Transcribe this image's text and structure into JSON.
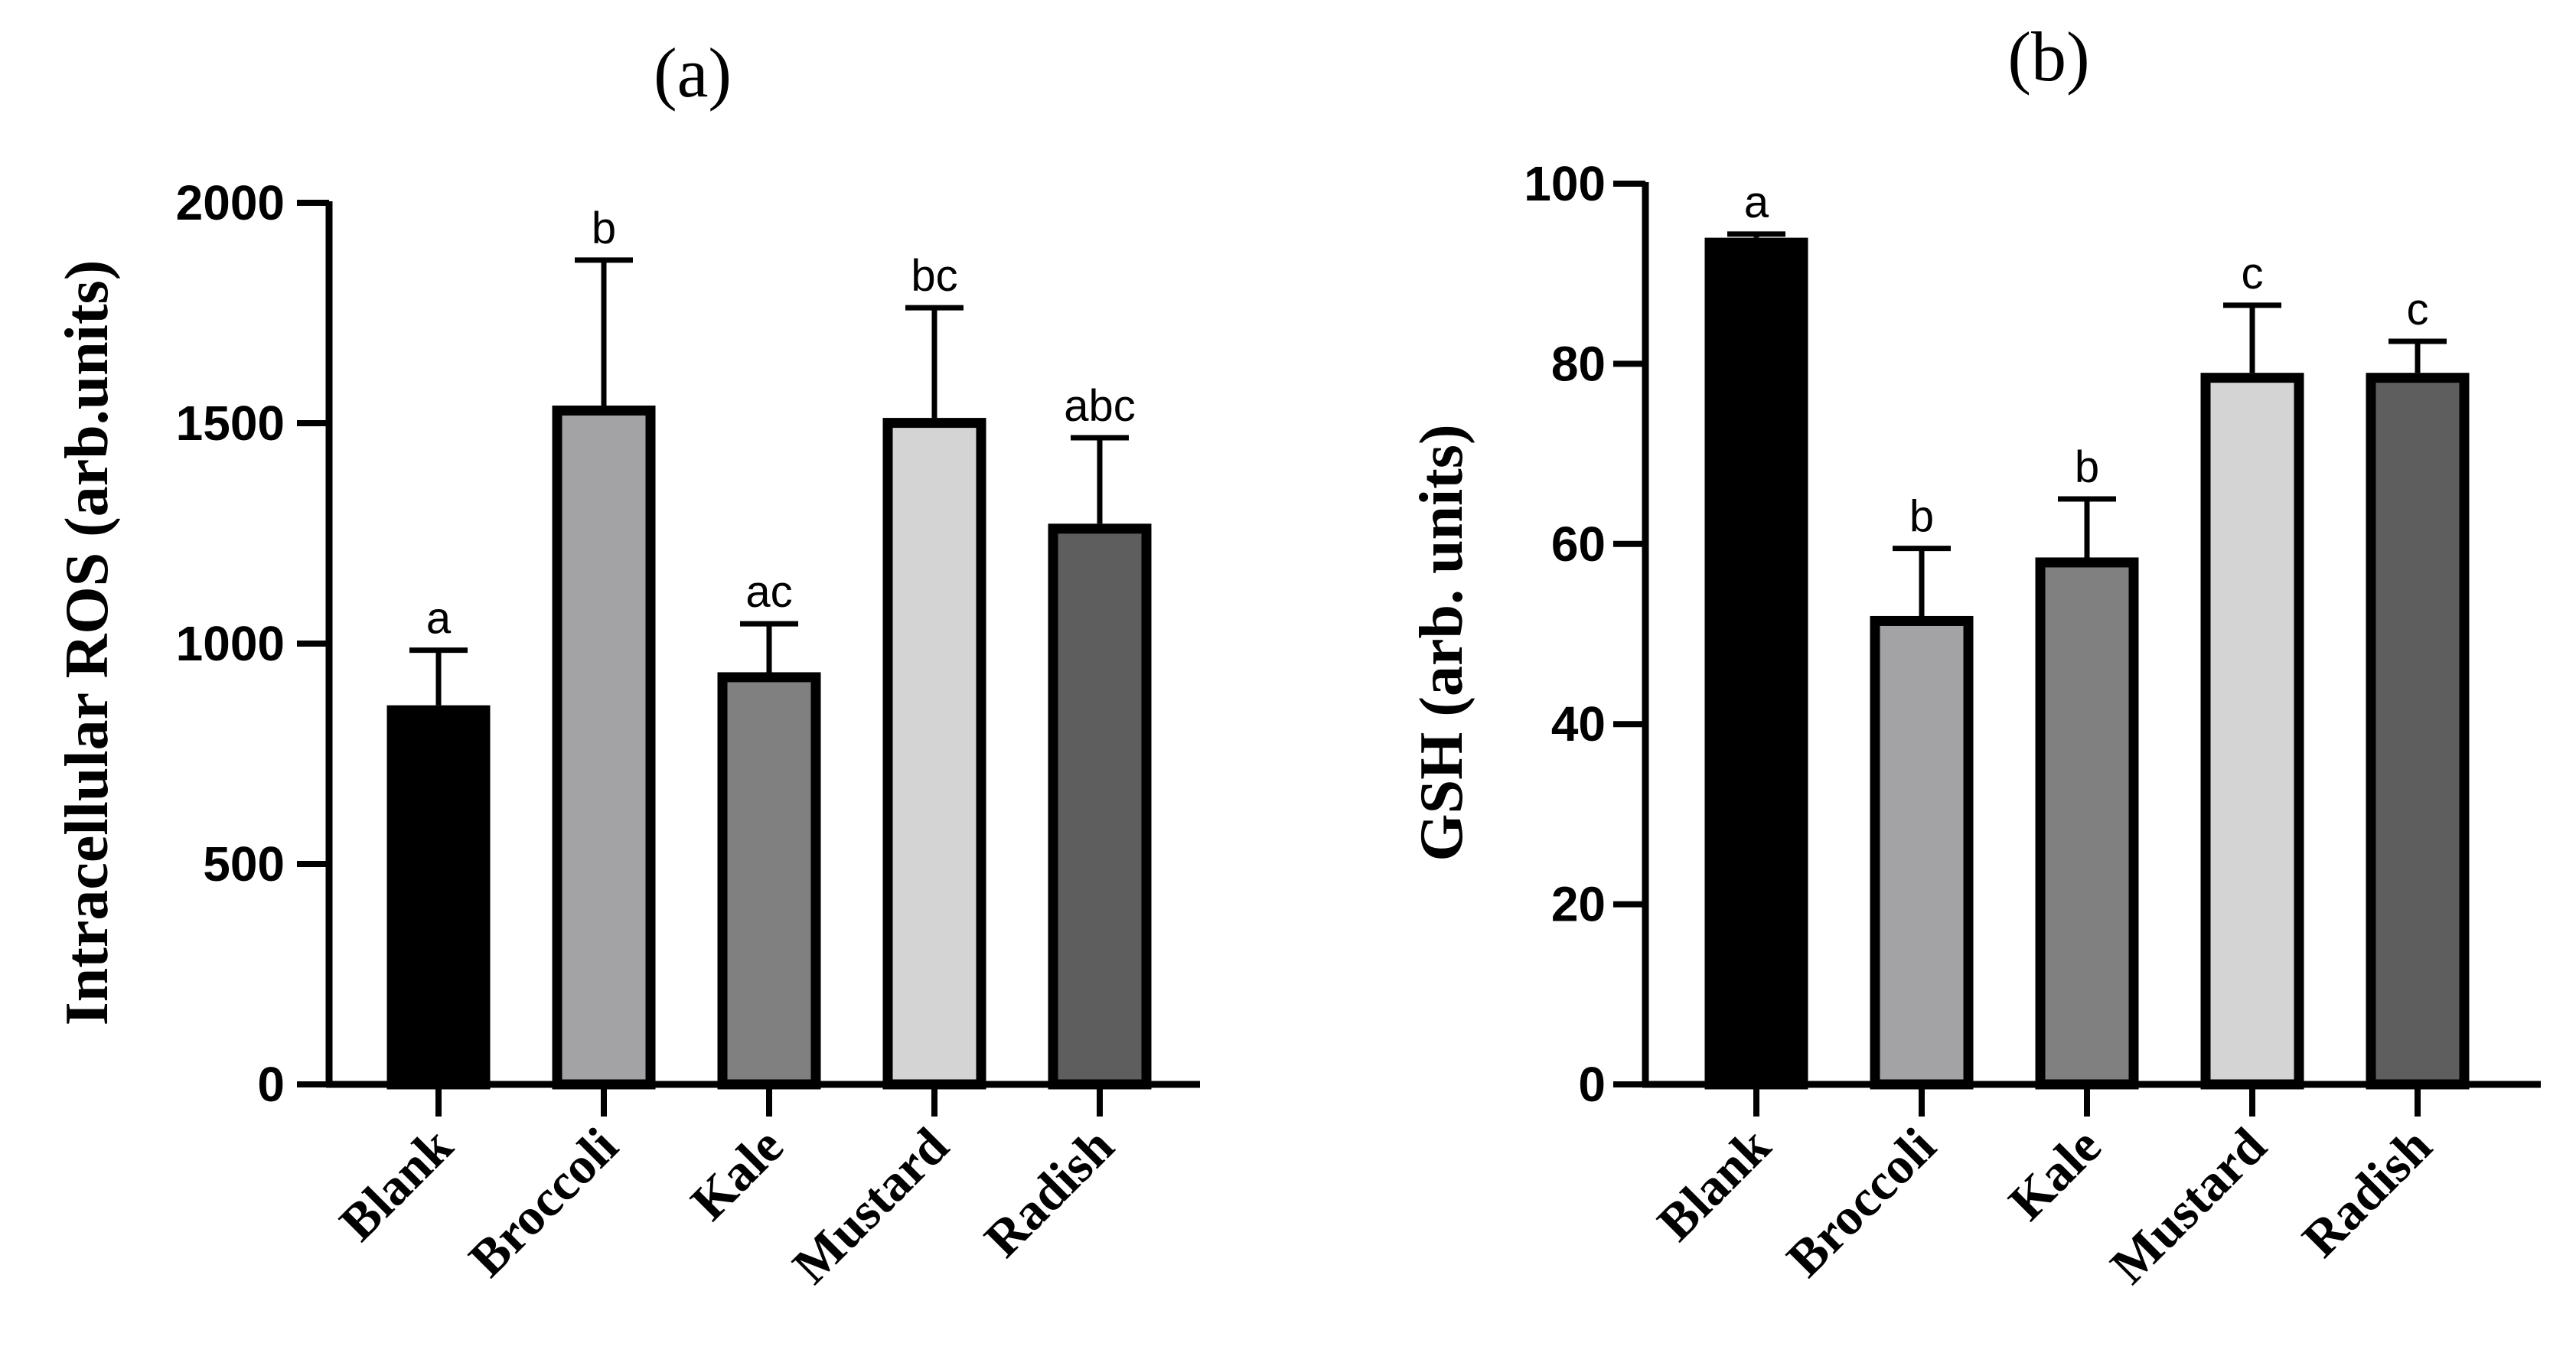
{
  "chart_data": [
    {
      "type": "bar",
      "panel_label": "(a)",
      "categories": [
        "Blank",
        "Broccoli",
        "Kale",
        "Mustard",
        "Radish"
      ],
      "values": [
        860,
        1540,
        935,
        1512,
        1272
      ],
      "errors": [
        125,
        330,
        110,
        250,
        195
      ],
      "significance": [
        "a",
        "b",
        "ac",
        "bc",
        "abc"
      ],
      "colors": [
        "#000000",
        "#a3a3a6",
        "#808080",
        "#d4d4d4",
        "#5e5e5e"
      ],
      "ylabel": "Intracellular ROS (arb.units)",
      "xlabel": "",
      "ylim": [
        0,
        2000
      ],
      "yticks": [
        0,
        500,
        1000,
        1500,
        2000
      ],
      "ytick_labels": [
        "0",
        "500",
        "1000",
        "1500",
        "2000"
      ],
      "grid": false
    },
    {
      "type": "bar",
      "panel_label": "(b)",
      "categories": [
        "Blank",
        "Broccoli",
        "Kale",
        "Mustard",
        "Radish"
      ],
      "values": [
        94,
        52,
        58.5,
        79,
        79
      ],
      "errors": [
        0.4,
        7.5,
        6.5,
        7.5,
        3.5
      ],
      "significance": [
        "a",
        "b",
        "b",
        "c",
        "c"
      ],
      "colors": [
        "#000000",
        "#a3a3a6",
        "#808080",
        "#d4d4d4",
        "#5e5e5e"
      ],
      "ylabel": "GSH (arb. units)",
      "xlabel": "",
      "ylim": [
        0,
        100
      ],
      "yticks": [
        0,
        20,
        40,
        60,
        80,
        100
      ],
      "ytick_labels": [
        "0",
        "20",
        "40",
        "60",
        "80",
        "100"
      ],
      "grid": false
    }
  ]
}
